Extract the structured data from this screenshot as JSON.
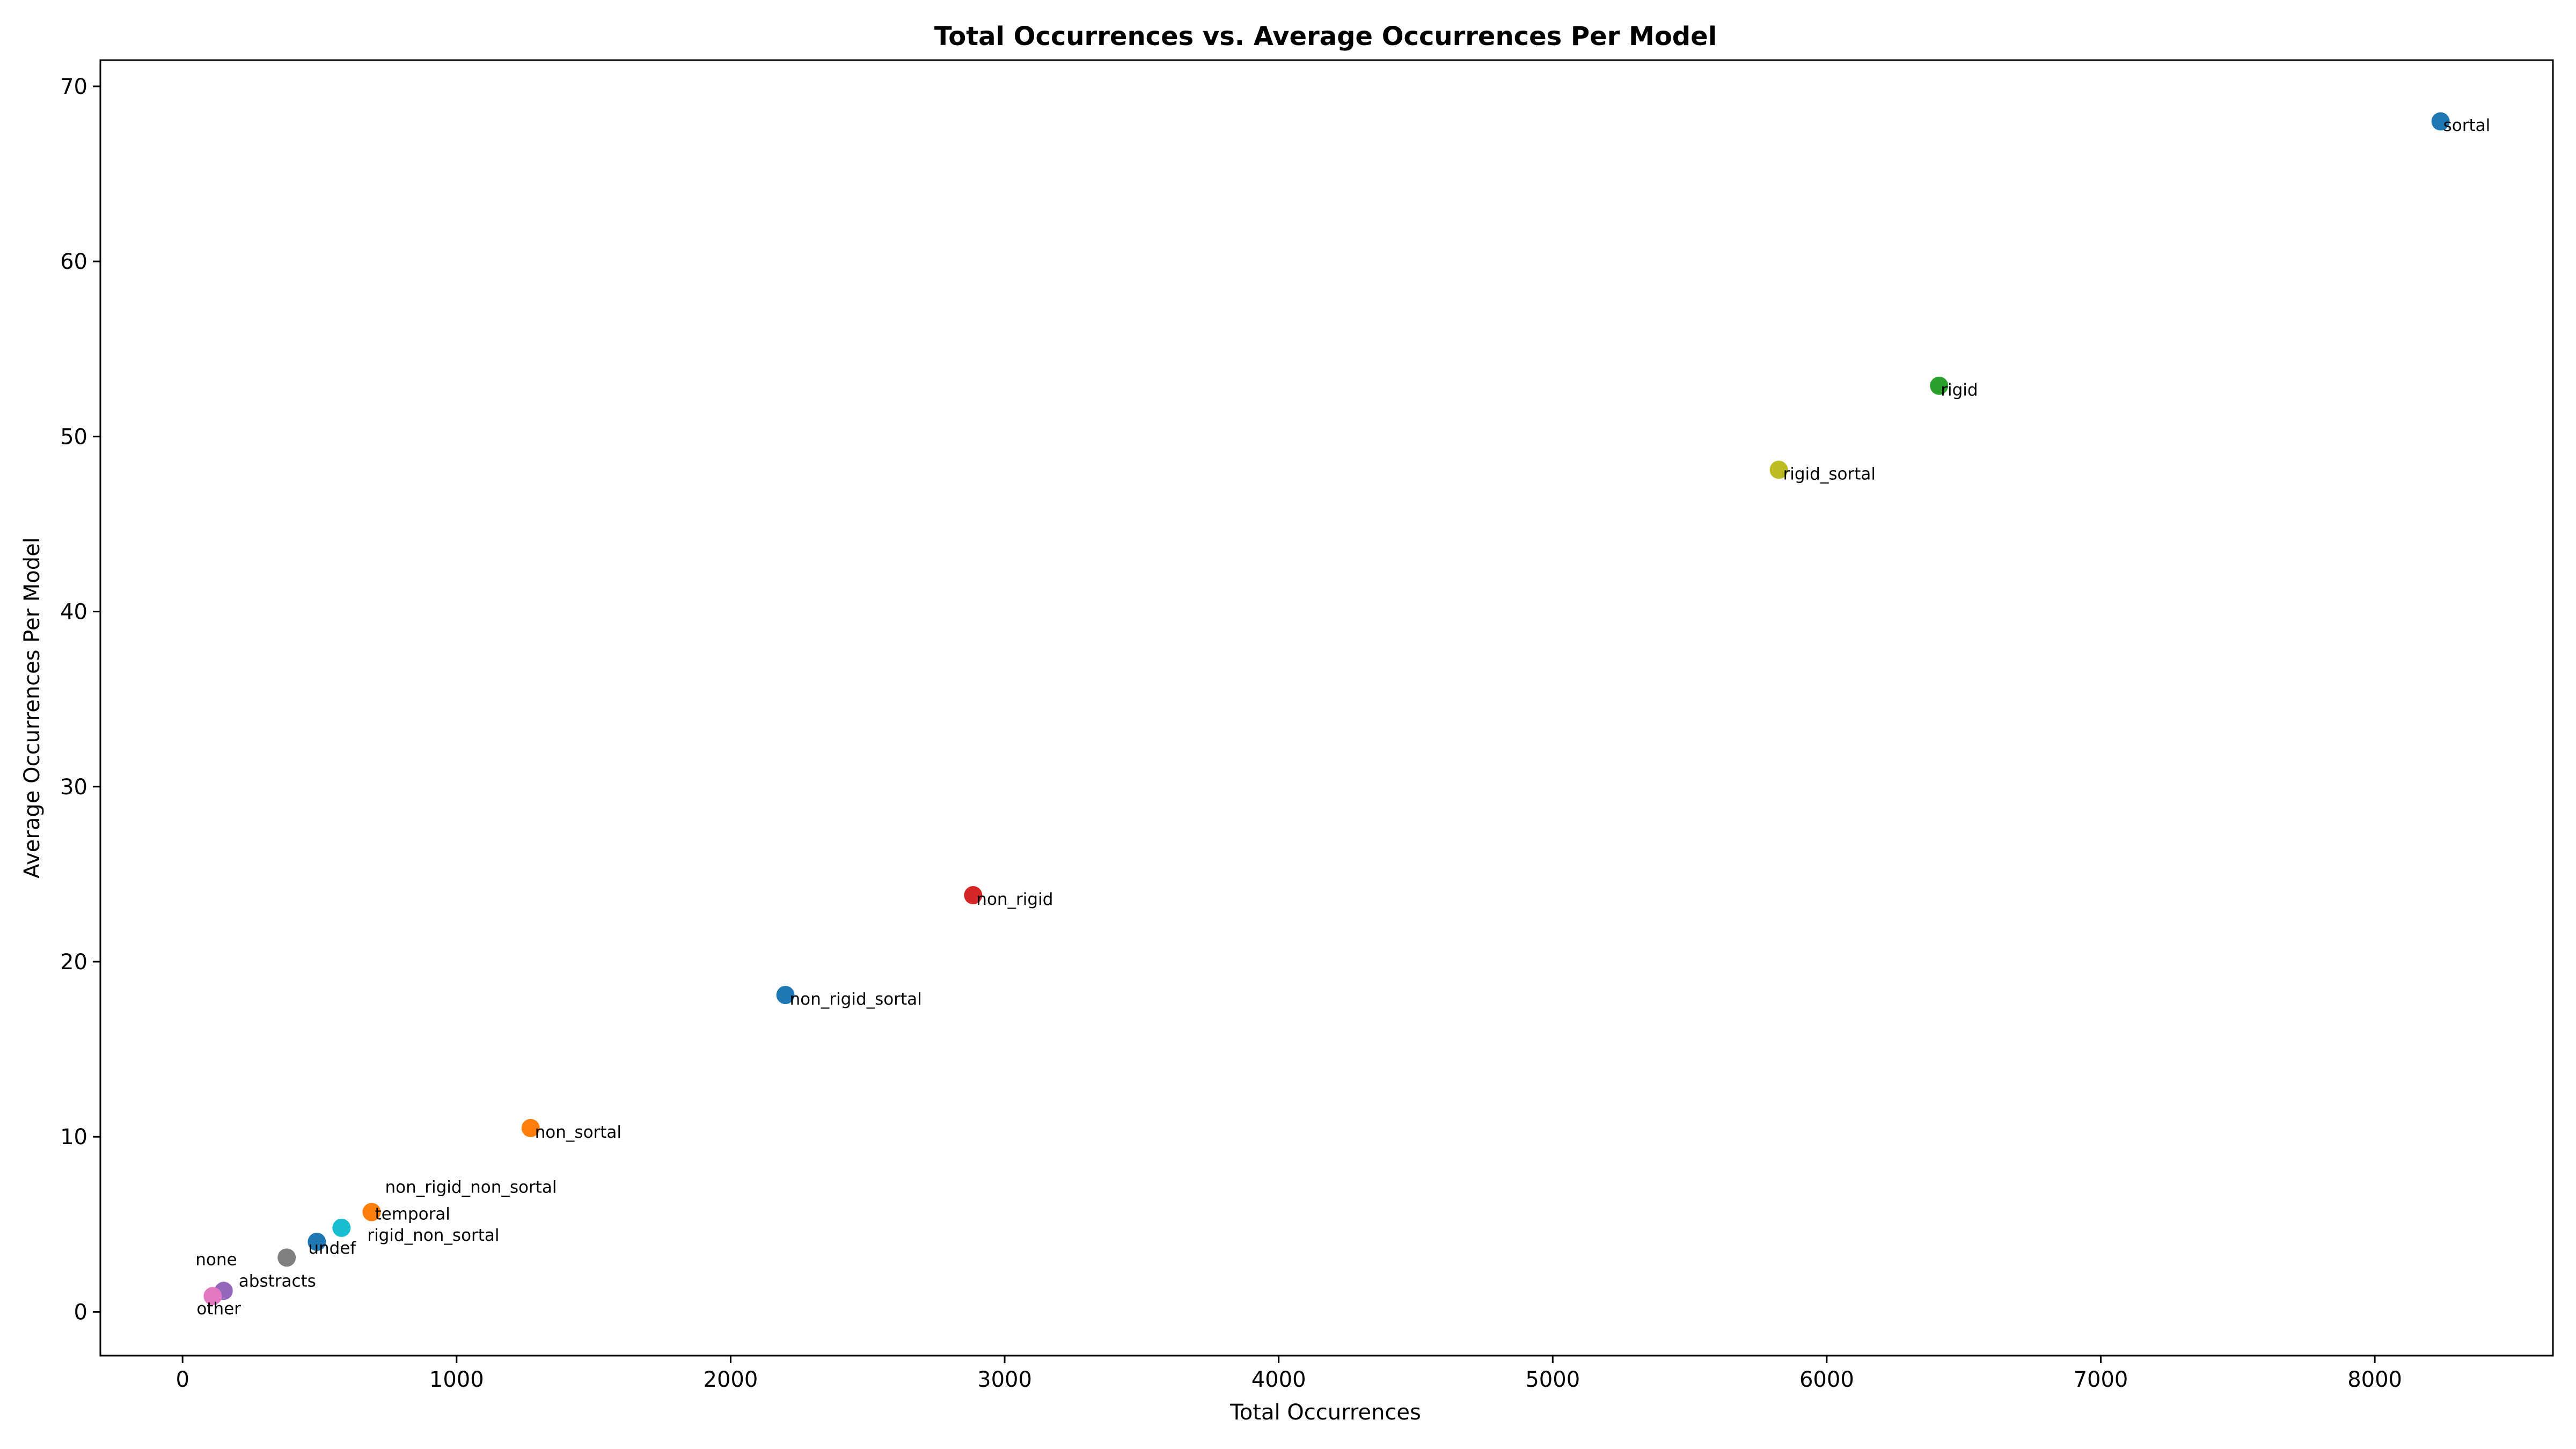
{
  "chart_data": {
    "type": "scatter",
    "title": "Total Occurrences vs. Average Occurrences Per Model",
    "xlabel": "Total Occurrences",
    "ylabel": "Average Occurrences Per Model",
    "xlim": [
      -300,
      8650
    ],
    "ylim": [
      -2.5,
      71.5
    ],
    "xticks": [
      0,
      1000,
      2000,
      3000,
      4000,
      5000,
      6000,
      7000,
      8000
    ],
    "yticks": [
      0,
      10,
      20,
      30,
      40,
      50,
      60,
      70
    ],
    "grid": false,
    "legend": "none",
    "points": [
      {
        "label": "sortal",
        "x": 8240,
        "y": 68.0,
        "color": "#1f77b4"
      },
      {
        "label": "rigid",
        "x": 6410,
        "y": 52.9,
        "color": "#2ca02c"
      },
      {
        "label": "rigid_sortal",
        "x": 5825,
        "y": 48.1,
        "color": "#bcbd22"
      },
      {
        "label": "non_rigid",
        "x": 2885,
        "y": 23.8,
        "color": "#d62728"
      },
      {
        "label": "non_rigid_sortal",
        "x": 2200,
        "y": 18.1,
        "color": "#1f77b4"
      },
      {
        "label": "non_sortal",
        "x": 1270,
        "y": 10.5,
        "color": "#ff7f0e"
      },
      {
        "label": "non_rigid_non_sortal",
        "x": 690,
        "y": 5.7,
        "color": "#ff7f0e"
      },
      {
        "label": "temporal",
        "x": 690,
        "y": 5.7,
        "color": "#ff7f0e"
      },
      {
        "label": "rigid_non_sortal",
        "x": 580,
        "y": 4.8,
        "color": "#17becf"
      },
      {
        "label": "undef",
        "x": 490,
        "y": 4.0,
        "color": "#1f77b4"
      },
      {
        "label": "none",
        "x": 380,
        "y": 3.1,
        "color": "#7f7f7f"
      },
      {
        "label": "abstracts",
        "x": 150,
        "y": 1.2,
        "color": "#9467bd"
      },
      {
        "label": "other",
        "x": 110,
        "y": 0.9,
        "color": "#e377c2"
      }
    ]
  }
}
